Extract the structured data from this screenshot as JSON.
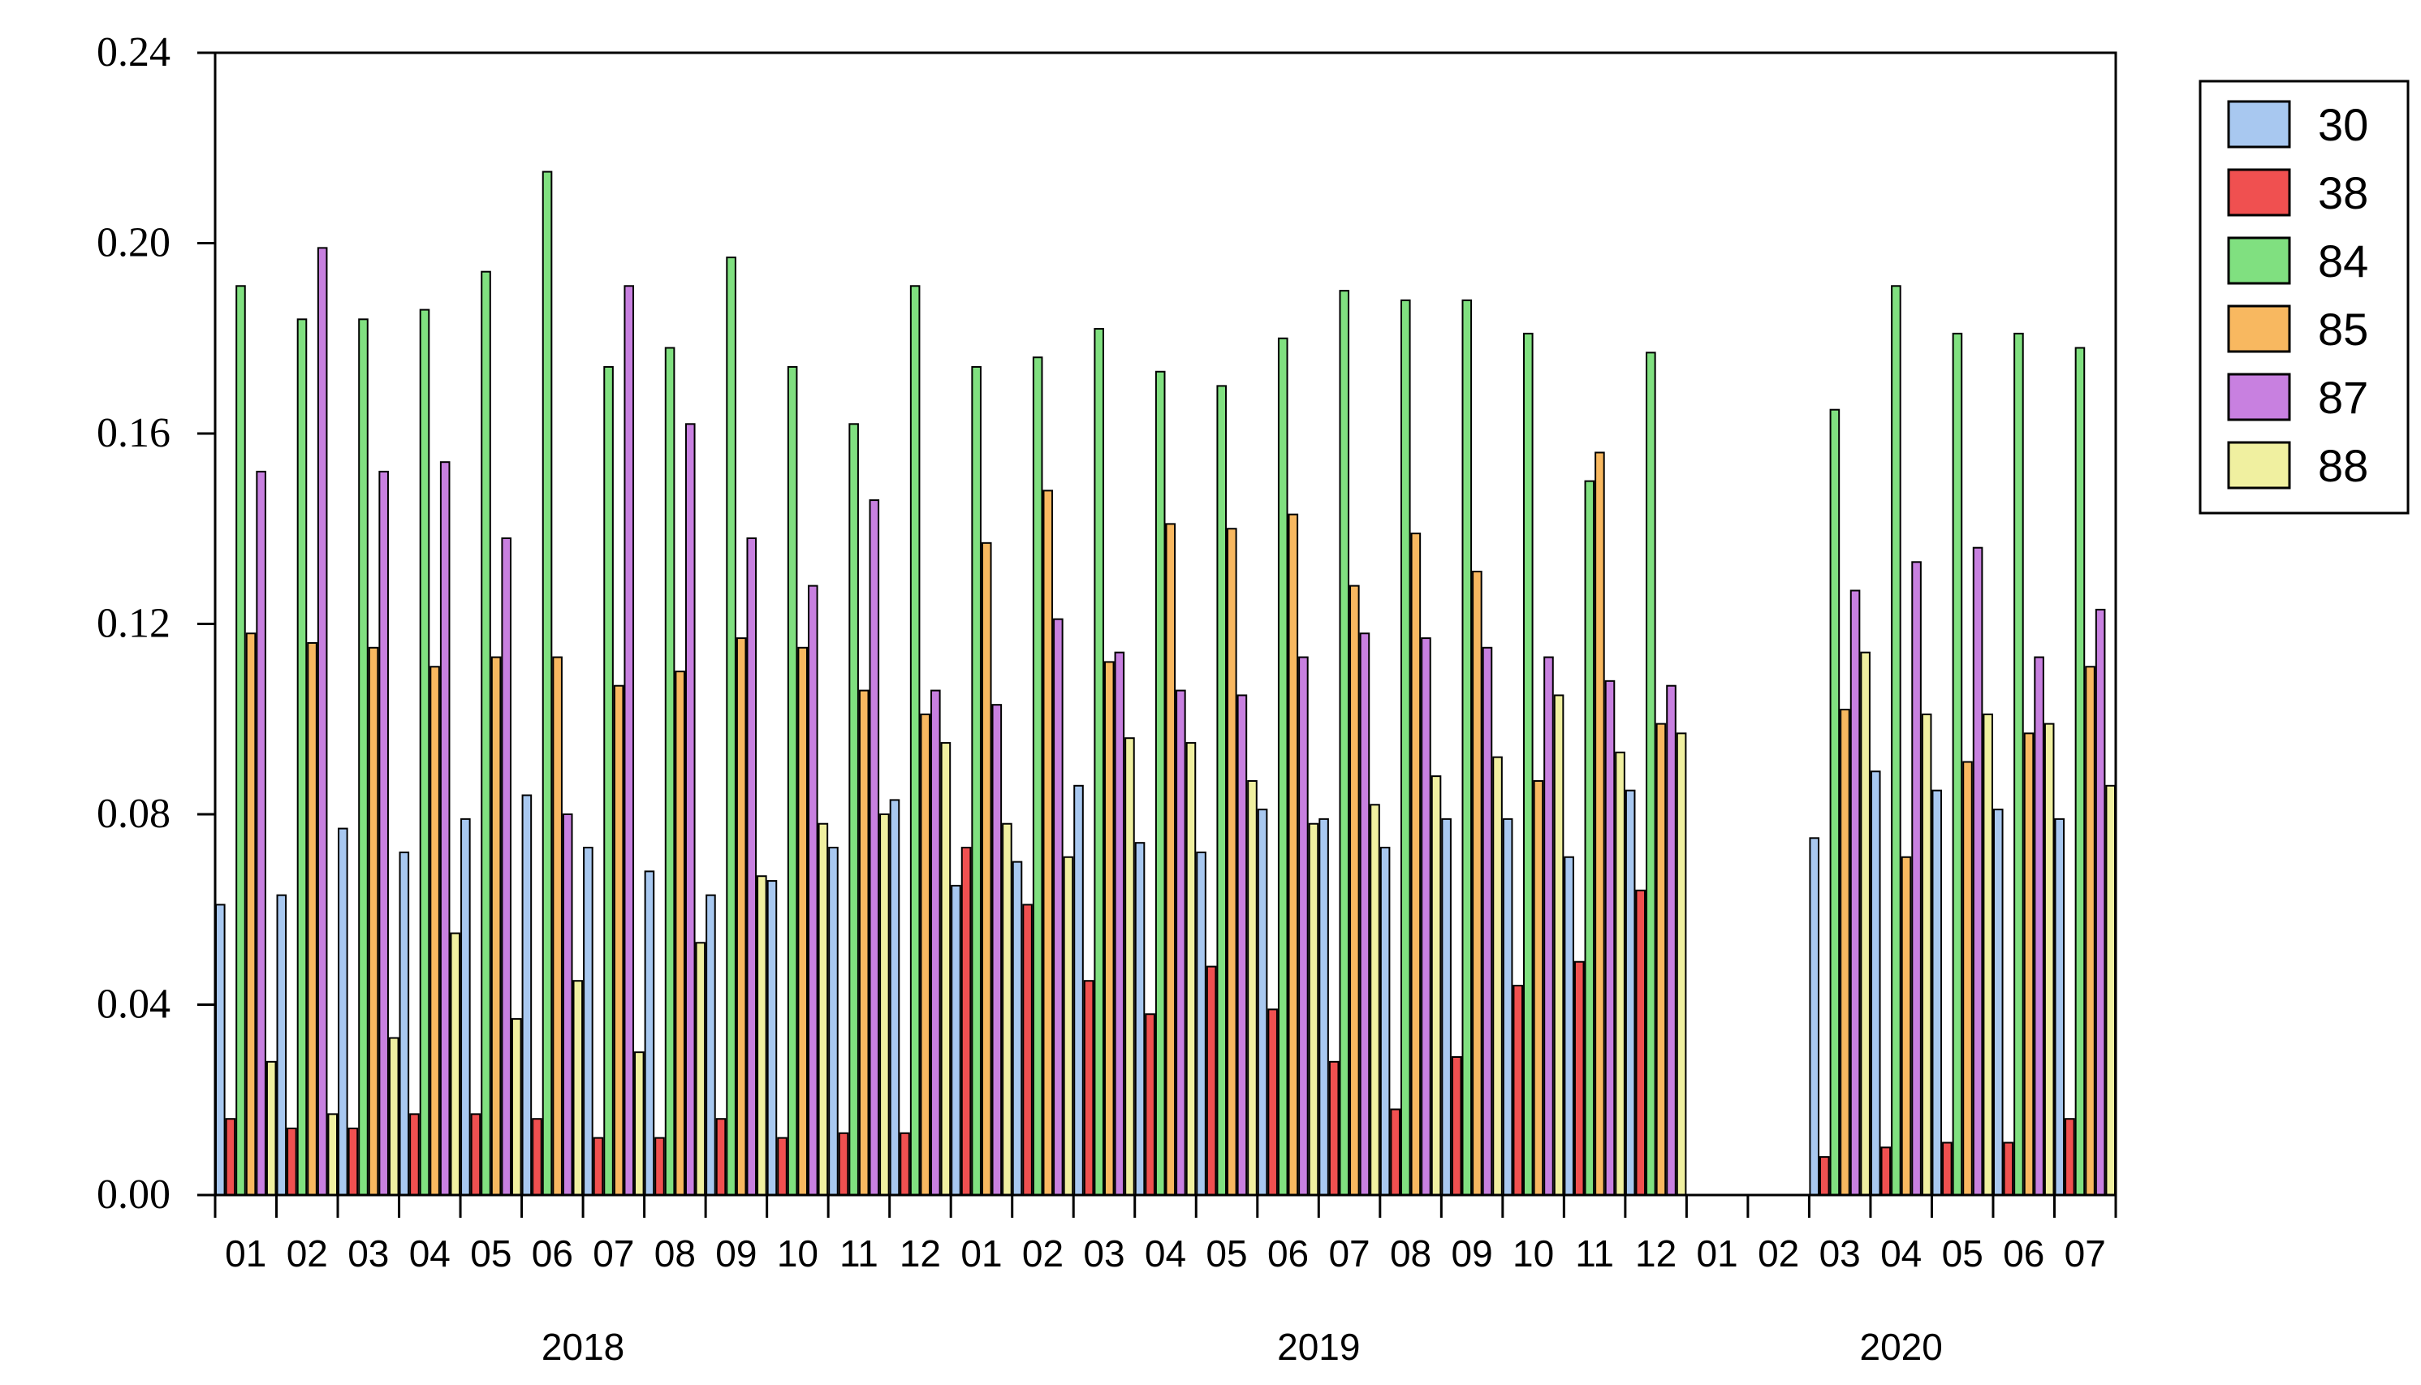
{
  "chart_data": {
    "type": "bar",
    "ylim": [
      0,
      0.24
    ],
    "yticks": [
      "0.00",
      "0.04",
      "0.08",
      "0.12",
      "0.16",
      "0.20",
      "0.24"
    ],
    "categories": [
      "01",
      "02",
      "03",
      "04",
      "05",
      "06",
      "07",
      "08",
      "09",
      "10",
      "11",
      "12",
      "01",
      "02",
      "03",
      "04",
      "05",
      "06",
      "07",
      "08",
      "09",
      "10",
      "11",
      "12",
      "01",
      "02",
      "03",
      "04",
      "05",
      "06",
      "07"
    ],
    "years": [
      {
        "label": "2018",
        "start": 0,
        "end": 11
      },
      {
        "label": "2019",
        "start": 12,
        "end": 23
      },
      {
        "label": "2020",
        "start": 24,
        "end": 30
      }
    ],
    "grid": false,
    "legend_position": "right",
    "series": [
      {
        "name": "30",
        "color": "#a8c8f0",
        "values": [
          0.061,
          0.063,
          0.077,
          0.072,
          0.079,
          0.084,
          0.073,
          0.068,
          0.063,
          0.066,
          0.073,
          0.083,
          0.065,
          0.07,
          0.086,
          0.074,
          0.072,
          0.081,
          0.079,
          0.073,
          0.079,
          0.079,
          0.071,
          0.085,
          null,
          null,
          0.075,
          0.089,
          0.085,
          0.081,
          0.079
        ]
      },
      {
        "name": "38",
        "color": "#f05050",
        "values": [
          0.016,
          0.014,
          0.014,
          0.017,
          0.017,
          0.016,
          0.012,
          0.012,
          0.016,
          0.012,
          0.013,
          0.013,
          0.073,
          0.061,
          0.045,
          0.038,
          0.048,
          0.039,
          0.028,
          0.018,
          0.029,
          0.044,
          0.049,
          0.064,
          null,
          null,
          0.008,
          0.01,
          0.011,
          0.011,
          0.016
        ]
      },
      {
        "name": "84",
        "color": "#80e080",
        "values": [
          0.191,
          0.184,
          0.184,
          0.186,
          0.194,
          0.215,
          0.174,
          0.178,
          0.197,
          0.174,
          0.162,
          0.191,
          0.174,
          0.176,
          0.182,
          0.173,
          0.17,
          0.18,
          0.19,
          0.188,
          0.188,
          0.181,
          0.15,
          0.177,
          null,
          null,
          0.165,
          0.191,
          0.181,
          0.181,
          0.178
        ]
      },
      {
        "name": "85",
        "color": "#f8b860",
        "values": [
          0.118,
          0.116,
          0.115,
          0.111,
          0.113,
          0.113,
          0.107,
          0.11,
          0.117,
          0.115,
          0.106,
          0.101,
          0.137,
          0.148,
          0.112,
          0.141,
          0.14,
          0.143,
          0.128,
          0.139,
          0.131,
          0.087,
          0.156,
          0.099,
          null,
          null,
          0.102,
          0.071,
          0.091,
          0.097,
          0.111
        ]
      },
      {
        "name": "87",
        "color": "#c880e0",
        "values": [
          0.152,
          0.199,
          0.152,
          0.154,
          0.138,
          0.08,
          0.191,
          0.162,
          0.138,
          0.128,
          0.146,
          0.106,
          0.103,
          0.121,
          0.114,
          0.106,
          0.105,
          0.113,
          0.118,
          0.117,
          0.115,
          0.113,
          0.108,
          0.107,
          null,
          null,
          0.127,
          0.133,
          0.136,
          0.113,
          0.123
        ]
      },
      {
        "name": "88",
        "color": "#f0f0a0",
        "values": [
          0.028,
          0.017,
          0.033,
          0.055,
          0.037,
          0.045,
          0.03,
          0.053,
          0.067,
          0.078,
          0.08,
          0.095,
          0.078,
          0.071,
          0.096,
          0.095,
          0.087,
          0.078,
          0.082,
          0.088,
          0.092,
          0.105,
          0.093,
          0.097,
          null,
          null,
          0.114,
          0.101,
          0.101,
          0.099,
          0.086
        ]
      }
    ]
  }
}
